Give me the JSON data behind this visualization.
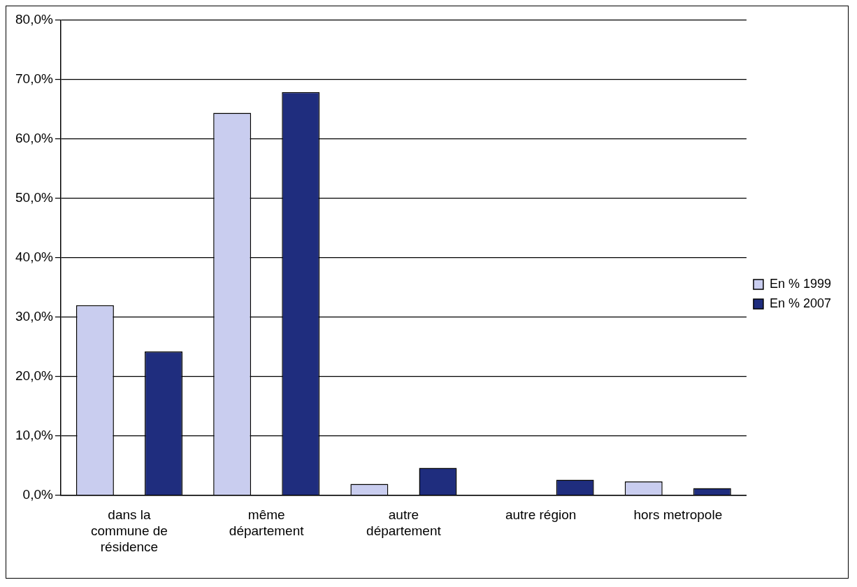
{
  "chart_data": {
    "type": "bar",
    "categories": [
      "dans la commune de résidence",
      "même département",
      "autre département",
      "autre région",
      "hors metropole"
    ],
    "series": [
      {
        "name": "En % 1999",
        "color": "#c9cdef",
        "values": [
          32.0,
          64.4,
          1.9,
          0,
          2.3
        ]
      },
      {
        "name": "En % 2007",
        "color": "#1f2d7e",
        "values": [
          24.2,
          67.9,
          4.6,
          2.6,
          1.2
        ]
      }
    ],
    "ylim": [
      0,
      80
    ],
    "yticks": [
      {
        "value": 0,
        "label": "0,0%"
      },
      {
        "value": 10,
        "label": "10,0%"
      },
      {
        "value": 20,
        "label": "20,0%"
      },
      {
        "value": 30,
        "label": "30,0%"
      },
      {
        "value": 40,
        "label": "40,0%"
      },
      {
        "value": 50,
        "label": "50,0%"
      },
      {
        "value": 60,
        "label": "60,0%"
      },
      {
        "value": 70,
        "label": "70,0%"
      },
      {
        "value": 80,
        "label": "80,0%"
      }
    ],
    "grid": "y",
    "legend": "right"
  }
}
